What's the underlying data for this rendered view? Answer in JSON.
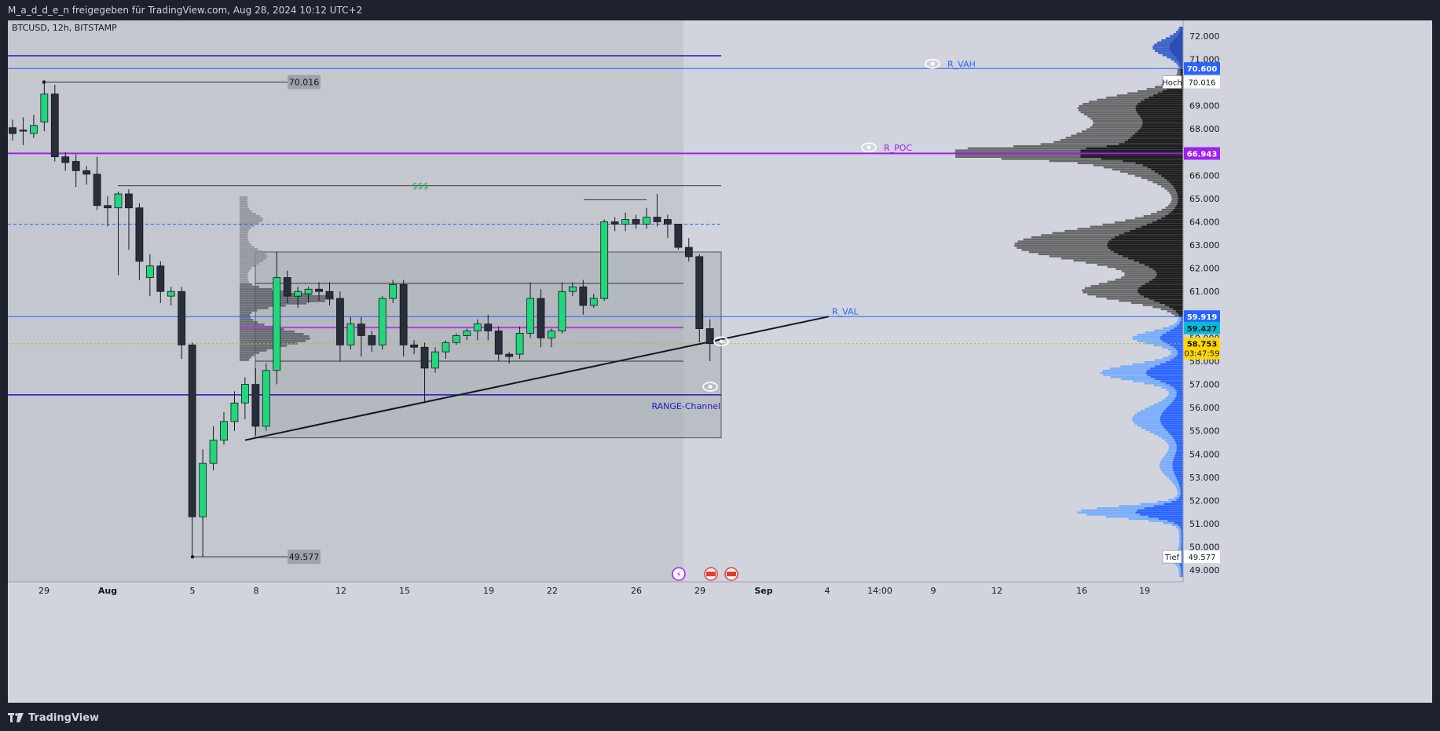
{
  "header": {
    "title": "M_a_d_d_e_n freigegeben für TradingView.com, Aug 28, 2024 10:12 UTC+2"
  },
  "footer": {
    "brand": "TradingView"
  },
  "colors": {
    "bull": "#22d67b",
    "bear": "#2a2e39",
    "blue_line": "#2962ff",
    "navy_line": "#1a1ac8",
    "poc": "#a020f0",
    "last_price": "#ffd600",
    "vp_upper": "#1a1a1a",
    "vp_upper_2": "#555555",
    "vp_lower": "#2962ff",
    "vp_lower_2": "#6fa8ff",
    "highlight_blue": "#00bcd4"
  },
  "chart_data": {
    "type": "candlestick",
    "symbol_label": "BTCUSD, 12h, BITSTAMP",
    "ylim": [
      48500,
      72400
    ],
    "x_ticks": [
      "29",
      "Aug",
      "5",
      "8",
      "12",
      "15",
      "19",
      "22",
      "26",
      "29",
      "Sep",
      "4",
      "14:00",
      "9",
      "12",
      "16",
      "19"
    ],
    "y_ticks": [
      "72.000",
      "71.000",
      "70.000",
      "69.000",
      "68.000",
      "67.000",
      "66.000",
      "65.000",
      "64.000",
      "63.000",
      "62.000",
      "61.000",
      "60.000",
      "59.000",
      "58.000",
      "57.000",
      "56.000",
      "55.000",
      "54.000",
      "53.000",
      "52.000",
      "51.000",
      "50.000",
      "49.000"
    ],
    "candles": [
      [
        68050,
        68400,
        67500,
        67800
      ],
      [
        67950,
        68500,
        67300,
        67900
      ],
      [
        67800,
        68600,
        67600,
        68150
      ],
      [
        68300,
        70016,
        67900,
        69500
      ],
      [
        69500,
        69900,
        66600,
        66800
      ],
      [
        66800,
        67000,
        66200,
        66550
      ],
      [
        66600,
        66900,
        65500,
        66200
      ],
      [
        66200,
        66400,
        65600,
        66050
      ],
      [
        66050,
        66800,
        64500,
        64700
      ],
      [
        64700,
        65100,
        63800,
        64600
      ],
      [
        64600,
        65300,
        61700,
        65200
      ],
      [
        65200,
        65400,
        62800,
        64600
      ],
      [
        64600,
        64800,
        61500,
        62300
      ],
      [
        61600,
        62600,
        60800,
        62100
      ],
      [
        62100,
        62300,
        60500,
        61000
      ],
      [
        60800,
        61200,
        60400,
        61000
      ],
      [
        61000,
        61200,
        58100,
        58700
      ],
      [
        58700,
        58800,
        49577,
        51300
      ],
      [
        51300,
        54200,
        49577,
        53600
      ],
      [
        53600,
        55200,
        53300,
        54600
      ],
      [
        54600,
        55800,
        54400,
        55400
      ],
      [
        55400,
        56700,
        55000,
        56200
      ],
      [
        56200,
        57300,
        55500,
        57000
      ],
      [
        57000,
        57700,
        54800,
        55200
      ],
      [
        55200,
        57900,
        55000,
        57600
      ],
      [
        57600,
        62700,
        57000,
        61600
      ],
      [
        61600,
        61900,
        60500,
        60800
      ],
      [
        60800,
        61200,
        60300,
        61000
      ],
      [
        60900,
        61200,
        60500,
        61100
      ],
      [
        61100,
        61400,
        60600,
        61000
      ],
      [
        61000,
        61400,
        60400,
        60700
      ],
      [
        60700,
        61000,
        58000,
        58700
      ],
      [
        58700,
        59900,
        58500,
        59600
      ],
      [
        59600,
        59900,
        58200,
        59100
      ],
      [
        59100,
        59300,
        58400,
        58700
      ],
      [
        58700,
        60800,
        58500,
        60700
      ],
      [
        60700,
        61500,
        60500,
        61300
      ],
      [
        61300,
        61500,
        58200,
        58700
      ],
      [
        58700,
        58900,
        58300,
        58600
      ],
      [
        58600,
        58800,
        56200,
        57700
      ],
      [
        57700,
        58600,
        57500,
        58400
      ],
      [
        58400,
        58900,
        58100,
        58800
      ],
      [
        58800,
        59200,
        58700,
        59100
      ],
      [
        59100,
        59400,
        58900,
        59300
      ],
      [
        59300,
        59800,
        58900,
        59600
      ],
      [
        59600,
        60000,
        58900,
        59300
      ],
      [
        59300,
        59500,
        58000,
        58300
      ],
      [
        58300,
        58400,
        57900,
        58200
      ],
      [
        58300,
        59500,
        58100,
        59200
      ],
      [
        59200,
        61400,
        59000,
        60700
      ],
      [
        60700,
        61100,
        58600,
        59000
      ],
      [
        59000,
        59400,
        58600,
        59300
      ],
      [
        59300,
        61400,
        59200,
        61000
      ],
      [
        61000,
        61400,
        60800,
        61200
      ],
      [
        61200,
        61500,
        60000,
        60400
      ],
      [
        60400,
        60900,
        60300,
        60700
      ],
      [
        60700,
        64100,
        60600,
        64000
      ],
      [
        64000,
        64200,
        63600,
        63900
      ],
      [
        63900,
        64400,
        63600,
        64100
      ],
      [
        64100,
        64300,
        63700,
        63900
      ],
      [
        63900,
        64600,
        63700,
        64200
      ],
      [
        64200,
        65200,
        63800,
        64000
      ],
      [
        64100,
        64300,
        63300,
        63900
      ],
      [
        63900,
        63900,
        62800,
        62900
      ],
      [
        62900,
        63300,
        62300,
        62500
      ],
      [
        62500,
        62600,
        58800,
        59400
      ],
      [
        59400,
        59800,
        58000,
        58753
      ]
    ],
    "levels": [
      {
        "name": "R_VAH",
        "value": 70600,
        "badge": "70.600"
      },
      {
        "name": "R_POC",
        "value": 66943,
        "badge": "66.943"
      },
      {
        "name": "R_VAL",
        "value": 59919,
        "badge": "59.919"
      }
    ],
    "range_channel_label": "RANGE-Channel",
    "liquidity_label": "$$$",
    "high_label": "70.016",
    "low_label": "49.577",
    "last_price": {
      "badge": "58.753",
      "countdown": "03:47:59"
    },
    "extra_badge": "59.427",
    "hoch_label": "Hoch",
    "hoch_value": "70.016",
    "tief_label": "Tief",
    "tief_value": "49.577"
  }
}
